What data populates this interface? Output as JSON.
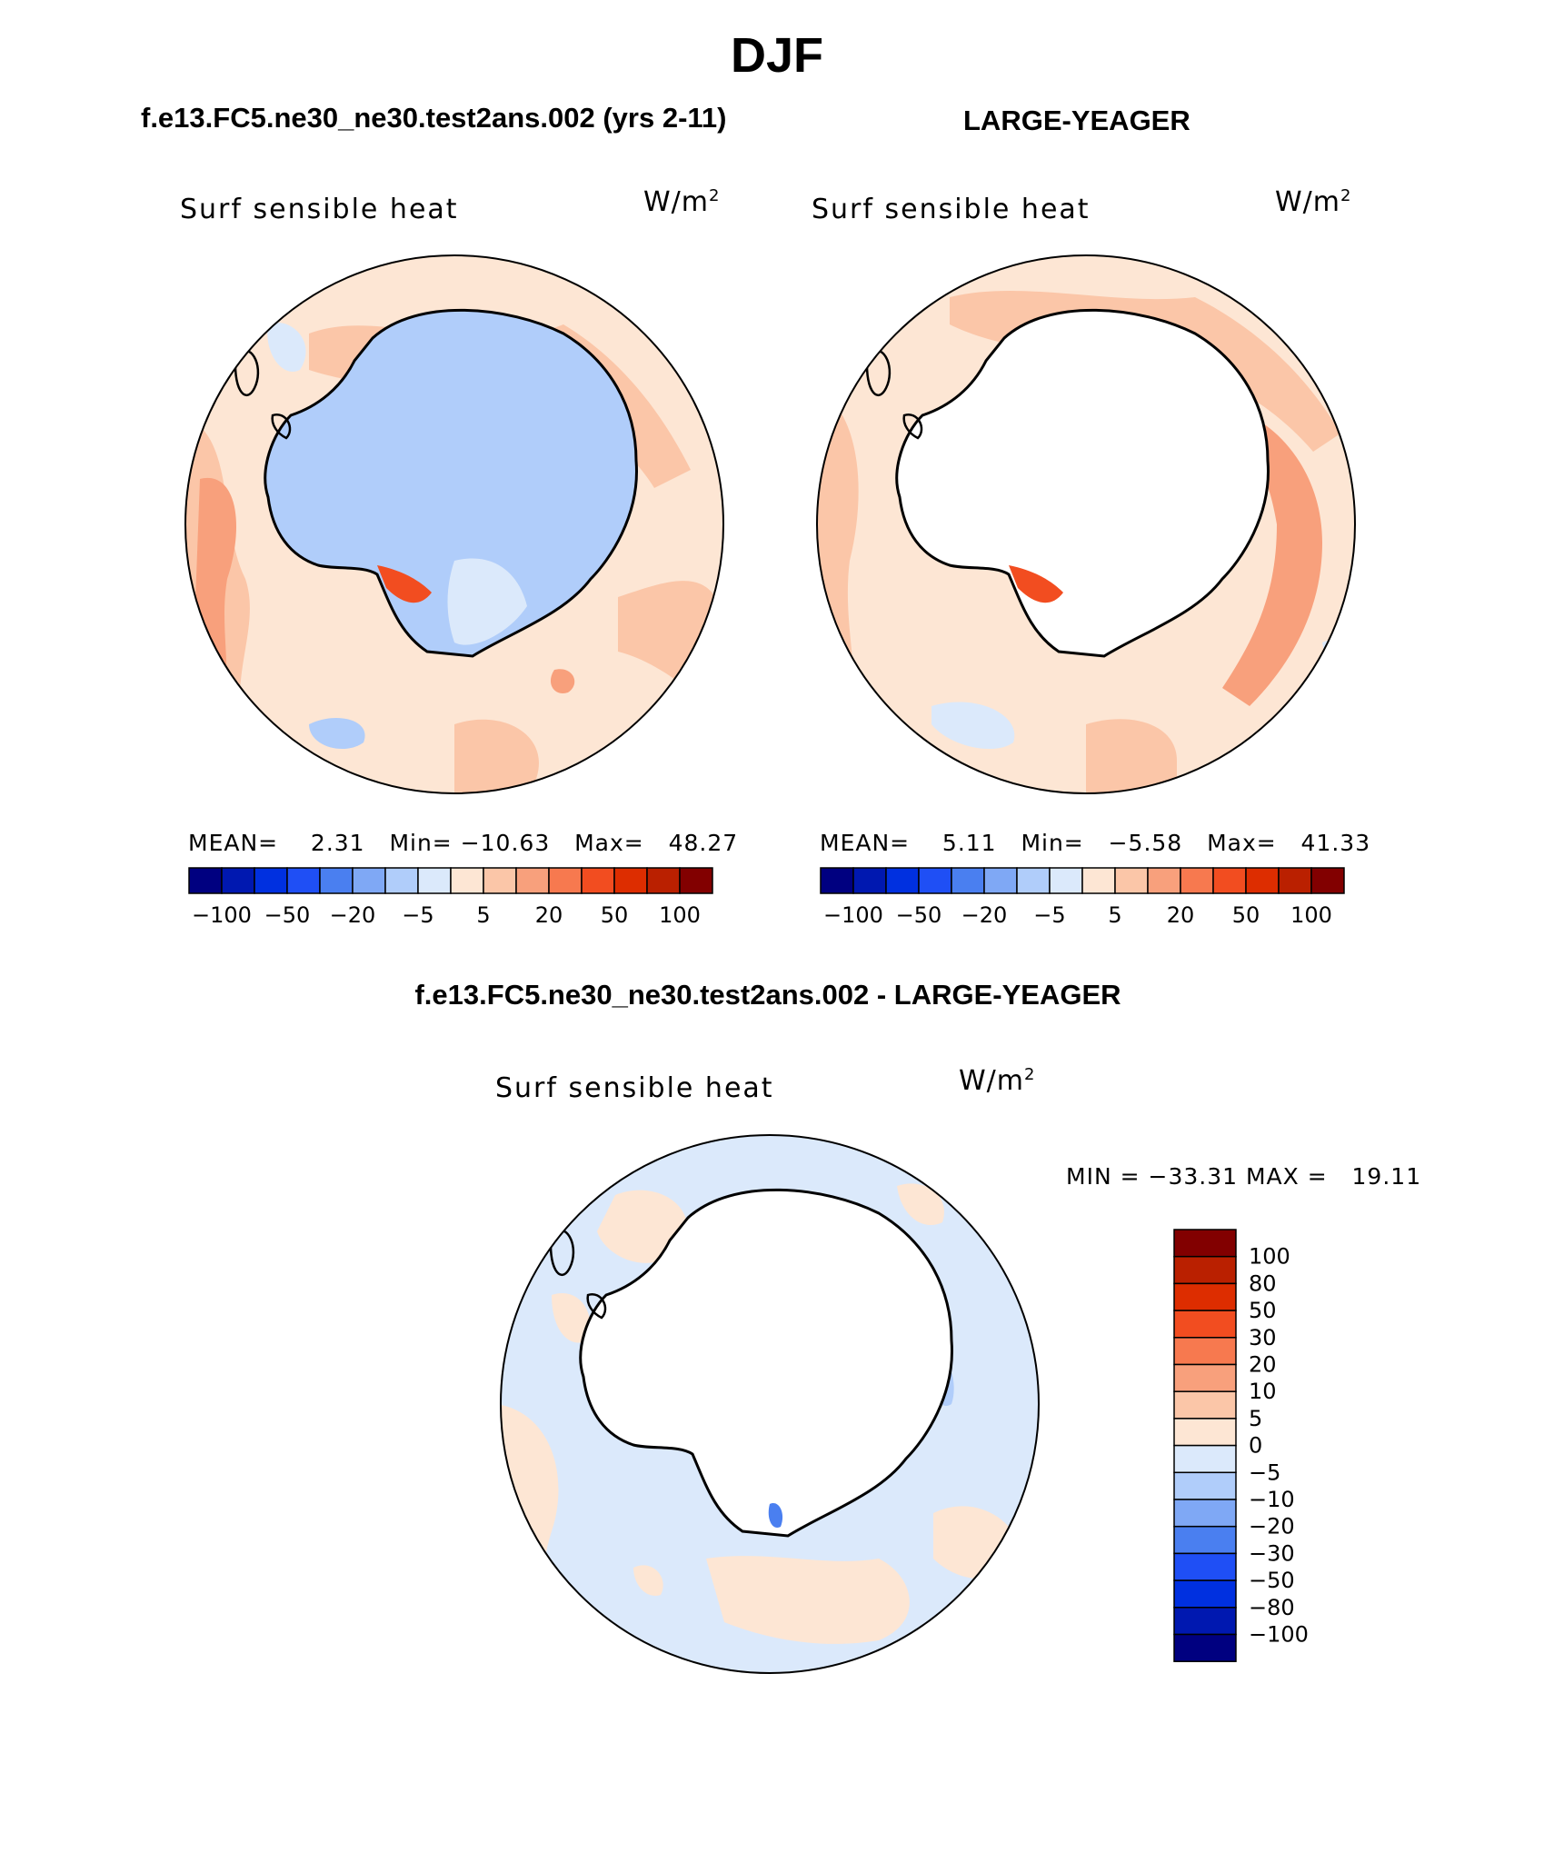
{
  "figure": {
    "title": "DJF"
  },
  "panel1": {
    "title": "f.e13.FC5.ne30_ne30.test2ans.002 (yrs 2-11)",
    "variable": "Surf sensible heat",
    "units_base": "W/m",
    "units_exp": "2",
    "stats": {
      "mean_label": "MEAN=",
      "mean": "2.31",
      "min_label": "Min=",
      "min": "−10.63",
      "max_label": "Max=",
      "max": "48.27"
    }
  },
  "panel2": {
    "title": "LARGE-YEAGER",
    "variable": "Surf sensible heat",
    "units_base": "W/m",
    "units_exp": "2",
    "stats": {
      "mean_label": "MEAN=",
      "mean": "5.11",
      "min_label": "Min=",
      "min": "−5.58",
      "max_label": "Max=",
      "max": "41.33"
    }
  },
  "panel3": {
    "title": "f.e13.FC5.ne30_ne30.test2ans.002 - LARGE-YEAGER",
    "variable": "Surf sensible heat",
    "units_base": "W/m",
    "units_exp": "2",
    "stats": {
      "min_label": "MIN =",
      "min": "−33.31",
      "max_label": "MAX =",
      "max": "19.11"
    }
  },
  "colorbar_horizontal": {
    "colors": [
      "#000080",
      "#0018b0",
      "#0030e0",
      "#1f4ff5",
      "#4a7ff0",
      "#7fa8f5",
      "#b0cdfa",
      "#dbe9fb",
      "#fde6d4",
      "#fbc6a8",
      "#f8a07c",
      "#f7794f",
      "#f24d20",
      "#dd2d00",
      "#ba2000",
      "#820000"
    ],
    "labels": [
      "−100",
      "−50",
      "−20",
      "−5",
      "5",
      "20",
      "50",
      "100"
    ]
  },
  "colorbar_vertical": {
    "colors_top_to_bottom": [
      "#820000",
      "#ba2000",
      "#dd2d00",
      "#f24d20",
      "#f7794f",
      "#f8a07c",
      "#fbc6a8",
      "#fde6d4",
      "#dbe9fb",
      "#b0cdfa",
      "#7fa8f5",
      "#4a7ff0",
      "#1f4ff5",
      "#0030e0",
      "#0018b0",
      "#000080"
    ],
    "labels": [
      "100",
      "80",
      "50",
      "30",
      "20",
      "10",
      "5",
      "0",
      "−5",
      "−10",
      "−20",
      "−30",
      "−50",
      "−80",
      "−100"
    ]
  }
}
